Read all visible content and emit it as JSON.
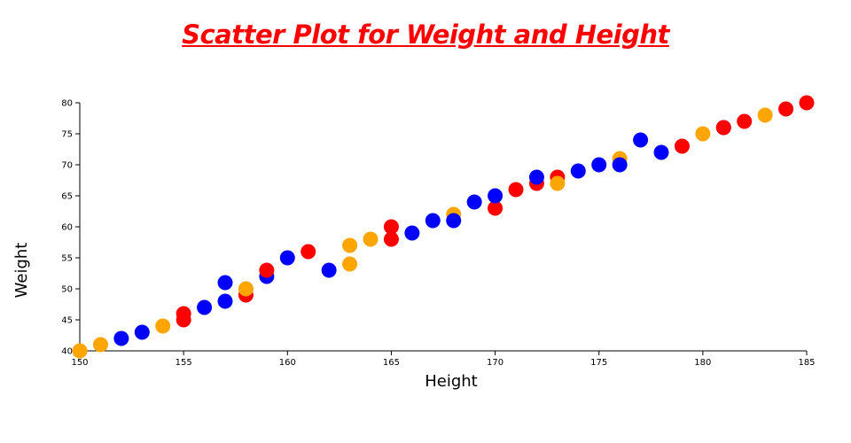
{
  "chart_data": {
    "type": "scatter",
    "title": "Scatter Plot for Weight and Height",
    "xlabel": "Height",
    "ylabel": "Weight",
    "xlim": [
      150,
      185
    ],
    "ylim": [
      40,
      80
    ],
    "xticks": [
      "150",
      "155",
      "160",
      "165",
      "170",
      "175",
      "180",
      "185"
    ],
    "yticks": [
      "40",
      "45",
      "50",
      "55",
      "60",
      "65",
      "70",
      "75",
      "80"
    ],
    "grid": false,
    "legend": "none",
    "colors": {
      "title": "#ff0000"
    },
    "points": [
      {
        "x": 150,
        "y": 40,
        "color": "#ffa500"
      },
      {
        "x": 151,
        "y": 41,
        "color": "#ffa500"
      },
      {
        "x": 152,
        "y": 42,
        "color": "#0000ff"
      },
      {
        "x": 153,
        "y": 43,
        "color": "#0000ff"
      },
      {
        "x": 154,
        "y": 44,
        "color": "#ffa500"
      },
      {
        "x": 155,
        "y": 45,
        "color": "#ff0000"
      },
      {
        "x": 155,
        "y": 46,
        "color": "#ff0000"
      },
      {
        "x": 156,
        "y": 47,
        "color": "#0000ff"
      },
      {
        "x": 157,
        "y": 48,
        "color": "#0000ff"
      },
      {
        "x": 157,
        "y": 51,
        "color": "#0000ff"
      },
      {
        "x": 158,
        "y": 49,
        "color": "#ff0000"
      },
      {
        "x": 158,
        "y": 50,
        "color": "#ffa500"
      },
      {
        "x": 159,
        "y": 52,
        "color": "#0000ff"
      },
      {
        "x": 159,
        "y": 53,
        "color": "#ff0000"
      },
      {
        "x": 160,
        "y": 55,
        "color": "#0000ff"
      },
      {
        "x": 161,
        "y": 56,
        "color": "#ff0000"
      },
      {
        "x": 162,
        "y": 53,
        "color": "#0000ff"
      },
      {
        "x": 163,
        "y": 54,
        "color": "#ffa500"
      },
      {
        "x": 163,
        "y": 57,
        "color": "#ffa500"
      },
      {
        "x": 164,
        "y": 58,
        "color": "#ffa500"
      },
      {
        "x": 165,
        "y": 58,
        "color": "#ff0000"
      },
      {
        "x": 165,
        "y": 60,
        "color": "#ff0000"
      },
      {
        "x": 166,
        "y": 59,
        "color": "#0000ff"
      },
      {
        "x": 167,
        "y": 61,
        "color": "#0000ff"
      },
      {
        "x": 168,
        "y": 62,
        "color": "#ffa500"
      },
      {
        "x": 168,
        "y": 61,
        "color": "#0000ff"
      },
      {
        "x": 169,
        "y": 64,
        "color": "#0000ff"
      },
      {
        "x": 170,
        "y": 63,
        "color": "#ff0000"
      },
      {
        "x": 170,
        "y": 65,
        "color": "#0000ff"
      },
      {
        "x": 171,
        "y": 66,
        "color": "#ff0000"
      },
      {
        "x": 172,
        "y": 67,
        "color": "#ff0000"
      },
      {
        "x": 172,
        "y": 68,
        "color": "#0000ff"
      },
      {
        "x": 173,
        "y": 68,
        "color": "#ff0000"
      },
      {
        "x": 173,
        "y": 67,
        "color": "#ffa500"
      },
      {
        "x": 174,
        "y": 69,
        "color": "#0000ff"
      },
      {
        "x": 175,
        "y": 70,
        "color": "#0000ff"
      },
      {
        "x": 176,
        "y": 71,
        "color": "#ffa500"
      },
      {
        "x": 176,
        "y": 70,
        "color": "#0000ff"
      },
      {
        "x": 177,
        "y": 74,
        "color": "#0000ff"
      },
      {
        "x": 178,
        "y": 72,
        "color": "#0000ff"
      },
      {
        "x": 179,
        "y": 73,
        "color": "#ff0000"
      },
      {
        "x": 180,
        "y": 75,
        "color": "#ffa500"
      },
      {
        "x": 181,
        "y": 76,
        "color": "#0000ff"
      },
      {
        "x": 181,
        "y": 76,
        "color": "#ff0000"
      },
      {
        "x": 182,
        "y": 77,
        "color": "#ff0000"
      },
      {
        "x": 183,
        "y": 78,
        "color": "#ffa500"
      },
      {
        "x": 184,
        "y": 79,
        "color": "#ff0000"
      },
      {
        "x": 185,
        "y": 80,
        "color": "#ff0000"
      }
    ]
  }
}
